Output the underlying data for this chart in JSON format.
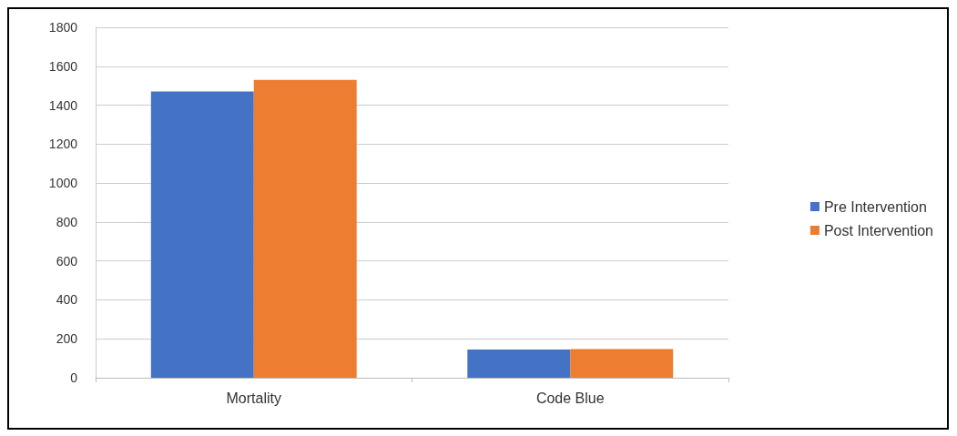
{
  "chart_data": {
    "type": "bar",
    "categories": [
      "Mortality",
      "Code Blue"
    ],
    "series": [
      {
        "name": "Pre Intervention",
        "color": "#4472c4",
        "values": [
          1470,
          145
        ]
      },
      {
        "name": "Post Intervention",
        "color": "#ed7d31",
        "values": [
          1530,
          147
        ]
      }
    ],
    "ylim": [
      0,
      1800
    ],
    "yticks": [
      0,
      200,
      400,
      600,
      800,
      1000,
      1200,
      1400,
      1600,
      1800
    ],
    "grid": "y",
    "legend": "right"
  }
}
